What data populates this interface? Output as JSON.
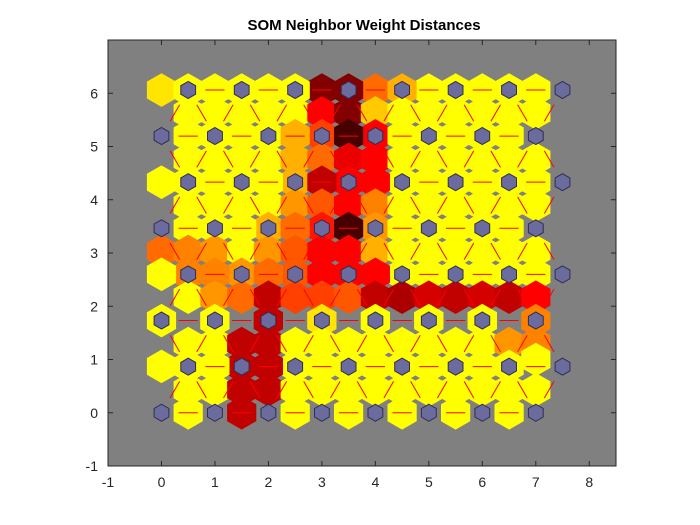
{
  "chart_data": {
    "type": "heatmap",
    "title": "SOM Neighbor Weight Distances",
    "xlabel": "",
    "ylabel": "",
    "xlim": [
      -1,
      8.5
    ],
    "ylim": [
      -1,
      7
    ],
    "x_ticks": [
      -1,
      0,
      1,
      2,
      3,
      4,
      5,
      6,
      7,
      8
    ],
    "y_ticks": [
      -1,
      0,
      1,
      2,
      3,
      4,
      5,
      6
    ],
    "grid": false,
    "colormap": "hot",
    "colors": {
      "background": "#808080",
      "neuron_fill": "#6b6b9e",
      "neuron_edge": "#2d2d55",
      "neighbor_line": "#ff0000"
    },
    "grid_size": {
      "cols": 8,
      "rows": 8
    },
    "neuron_spacing": {
      "dx": 1,
      "dy": 0.866,
      "odd_row_offset": 0.5
    },
    "neighbor_distances": {
      "description_levels": "0 = darkest (largest distance), 1 = brightest (smallest distance)",
      "horizontal": [
        {
          "row": 0,
          "values": [
            1.0,
            0.25,
            0.45,
            1.0,
            1.0,
            1.0,
            1.0
          ]
        },
        {
          "row": 1,
          "values": [
            1.0,
            1.0,
            0.9,
            0.3,
            1.0,
            1.0,
            1.0
          ]
        },
        {
          "row": 2,
          "values": [
            1.0,
            1.0,
            0.75,
            1.0,
            1.0,
            1.0,
            1.0
          ]
        },
        {
          "row": 3,
          "values": [
            1.0,
            0.7,
            0.5,
            0.6,
            1.0,
            1.0,
            1.0
          ]
        },
        {
          "row": 4,
          "values": [
            0.7,
            0.8,
            0.65,
            0.45,
            0.3,
            0.25,
            0.35
          ]
        },
        {
          "row": 5,
          "values": [
            0.75,
            0.95,
            0.65,
            0.55,
            0.65,
            0.95,
            1.0
          ]
        },
        {
          "row": 6,
          "values": [
            1.0,
            1.0,
            1.0,
            0.55,
            0.85,
            1.0,
            1.0
          ]
        },
        {
          "row": 7,
          "values": [
            1.0,
            1.0,
            1.0,
            0.55,
            0.85,
            1.0,
            1.0
          ]
        }
      ]
    },
    "cells": [
      {
        "x": 0.0,
        "y": 6.06,
        "v": 0.95
      },
      {
        "x": 1.0,
        "y": 6.06,
        "v": 1.0
      },
      {
        "x": 2.0,
        "y": 6.06,
        "v": 1.0
      },
      {
        "x": 3.0,
        "y": 6.06,
        "v": 0.15
      },
      {
        "x": 4.0,
        "y": 6.06,
        "v": 0.7
      },
      {
        "x": 5.0,
        "y": 6.06,
        "v": 1.0
      },
      {
        "x": 6.0,
        "y": 6.06,
        "v": 1.0
      },
      {
        "x": 7.0,
        "y": 6.06,
        "v": 1.0
      },
      {
        "x": 0.5,
        "y": 6.06,
        "v": 1.0
      },
      {
        "x": 1.5,
        "y": 6.06,
        "v": 1.0
      },
      {
        "x": 2.5,
        "y": 6.06,
        "v": 1.0
      },
      {
        "x": 3.5,
        "y": 6.06,
        "v": 0.15
      },
      {
        "x": 4.5,
        "y": 6.06,
        "v": 0.85
      },
      {
        "x": 5.5,
        "y": 6.06,
        "v": 1.0
      },
      {
        "x": 6.5,
        "y": 6.06,
        "v": 1.0
      },
      {
        "x": 0.5,
        "y": 5.63,
        "v": 1.0
      },
      {
        "x": 1.0,
        "y": 5.63,
        "v": 1.0
      },
      {
        "x": 1.5,
        "y": 5.63,
        "v": 1.0
      },
      {
        "x": 2.0,
        "y": 5.63,
        "v": 1.0
      },
      {
        "x": 2.5,
        "y": 5.63,
        "v": 1.0
      },
      {
        "x": 3.0,
        "y": 5.63,
        "v": 0.45
      },
      {
        "x": 3.5,
        "y": 5.63,
        "v": 0.15
      },
      {
        "x": 4.0,
        "y": 5.63,
        "v": 0.9
      },
      {
        "x": 4.5,
        "y": 5.63,
        "v": 1.0
      },
      {
        "x": 5.0,
        "y": 5.63,
        "v": 1.0
      },
      {
        "x": 5.5,
        "y": 5.63,
        "v": 1.0
      },
      {
        "x": 6.0,
        "y": 5.63,
        "v": 1.0
      },
      {
        "x": 6.5,
        "y": 5.63,
        "v": 1.0
      },
      {
        "x": 7.0,
        "y": 5.63,
        "v": 1.0
      },
      {
        "x": 1.0,
        "y": 5.2,
        "v": 1.0
      },
      {
        "x": 2.0,
        "y": 5.2,
        "v": 1.0
      },
      {
        "x": 3.0,
        "y": 5.2,
        "v": 0.6
      },
      {
        "x": 4.0,
        "y": 5.2,
        "v": 0.45
      },
      {
        "x": 5.0,
        "y": 5.2,
        "v": 1.0
      },
      {
        "x": 6.0,
        "y": 5.2,
        "v": 1.0
      },
      {
        "x": 0.5,
        "y": 5.2,
        "v": 1.0
      },
      {
        "x": 1.5,
        "y": 5.2,
        "v": 1.0
      },
      {
        "x": 2.5,
        "y": 5.2,
        "v": 0.85
      },
      {
        "x": 3.5,
        "y": 5.2,
        "v": 0.05
      },
      {
        "x": 4.5,
        "y": 5.2,
        "v": 1.0
      },
      {
        "x": 5.5,
        "y": 5.2,
        "v": 1.0
      },
      {
        "x": 6.5,
        "y": 5.2,
        "v": 1.0
      },
      {
        "x": 0.5,
        "y": 4.76,
        "v": 1.0
      },
      {
        "x": 1.0,
        "y": 4.76,
        "v": 1.0
      },
      {
        "x": 1.5,
        "y": 4.76,
        "v": 1.0
      },
      {
        "x": 2.0,
        "y": 4.76,
        "v": 1.0
      },
      {
        "x": 2.5,
        "y": 4.76,
        "v": 0.85
      },
      {
        "x": 3.0,
        "y": 4.76,
        "v": 0.7
      },
      {
        "x": 3.5,
        "y": 4.76,
        "v": 0.4
      },
      {
        "x": 4.0,
        "y": 4.76,
        "v": 0.45
      },
      {
        "x": 4.5,
        "y": 4.76,
        "v": 1.0
      },
      {
        "x": 5.0,
        "y": 4.76,
        "v": 1.0
      },
      {
        "x": 5.5,
        "y": 4.76,
        "v": 1.0
      },
      {
        "x": 6.0,
        "y": 4.76,
        "v": 1.0
      },
      {
        "x": 6.5,
        "y": 4.76,
        "v": 1.0
      },
      {
        "x": 7.0,
        "y": 4.76,
        "v": 1.0
      },
      {
        "x": 0.5,
        "y": 4.33,
        "v": 1.0
      },
      {
        "x": 1.5,
        "y": 4.33,
        "v": 1.0
      },
      {
        "x": 2.5,
        "y": 4.33,
        "v": 0.85
      },
      {
        "x": 3.5,
        "y": 4.33,
        "v": 0.45
      },
      {
        "x": 4.5,
        "y": 4.33,
        "v": 1.0
      },
      {
        "x": 5.5,
        "y": 4.33,
        "v": 1.0
      },
      {
        "x": 6.5,
        "y": 4.33,
        "v": 1.0
      },
      {
        "x": 0.0,
        "y": 4.33,
        "v": 1.0
      },
      {
        "x": 1.0,
        "y": 4.33,
        "v": 1.0
      },
      {
        "x": 2.0,
        "y": 4.33,
        "v": 1.0
      },
      {
        "x": 3.0,
        "y": 4.33,
        "v": 0.3
      },
      {
        "x": 4.0,
        "y": 4.33,
        "v": 0.45
      },
      {
        "x": 5.0,
        "y": 4.33,
        "v": 1.0
      },
      {
        "x": 6.0,
        "y": 4.33,
        "v": 1.0
      },
      {
        "x": 7.0,
        "y": 4.33,
        "v": 1.0
      },
      {
        "x": 0.5,
        "y": 3.9,
        "v": 1.0
      },
      {
        "x": 1.0,
        "y": 3.9,
        "v": 1.0
      },
      {
        "x": 1.5,
        "y": 3.9,
        "v": 1.0
      },
      {
        "x": 2.0,
        "y": 3.9,
        "v": 1.0
      },
      {
        "x": 2.5,
        "y": 3.9,
        "v": 0.8
      },
      {
        "x": 3.0,
        "y": 3.9,
        "v": 0.65
      },
      {
        "x": 3.5,
        "y": 3.9,
        "v": 0.45
      },
      {
        "x": 4.0,
        "y": 3.9,
        "v": 0.75
      },
      {
        "x": 4.5,
        "y": 3.9,
        "v": 1.0
      },
      {
        "x": 5.0,
        "y": 3.9,
        "v": 1.0
      },
      {
        "x": 5.5,
        "y": 3.9,
        "v": 1.0
      },
      {
        "x": 6.0,
        "y": 3.9,
        "v": 1.0
      },
      {
        "x": 6.5,
        "y": 3.9,
        "v": 1.0
      },
      {
        "x": 7.0,
        "y": 3.9,
        "v": 1.0
      },
      {
        "x": 1.0,
        "y": 3.46,
        "v": 1.0
      },
      {
        "x": 2.0,
        "y": 3.46,
        "v": 0.85
      },
      {
        "x": 3.0,
        "y": 3.46,
        "v": 0.5
      },
      {
        "x": 4.0,
        "y": 3.46,
        "v": 0.8
      },
      {
        "x": 5.0,
        "y": 3.46,
        "v": 1.0
      },
      {
        "x": 6.0,
        "y": 3.46,
        "v": 1.0
      },
      {
        "x": 0.5,
        "y": 3.46,
        "v": 1.0
      },
      {
        "x": 1.5,
        "y": 3.46,
        "v": 1.0
      },
      {
        "x": 2.5,
        "y": 3.46,
        "v": 0.7
      },
      {
        "x": 3.5,
        "y": 3.46,
        "v": 0.05
      },
      {
        "x": 4.5,
        "y": 3.46,
        "v": 1.0
      },
      {
        "x": 5.5,
        "y": 3.46,
        "v": 1.0
      },
      {
        "x": 6.5,
        "y": 3.46,
        "v": 1.0
      },
      {
        "x": 0.0,
        "y": 3.03,
        "v": 0.7
      },
      {
        "x": 0.5,
        "y": 3.03,
        "v": 0.75
      },
      {
        "x": 1.0,
        "y": 3.03,
        "v": 0.8
      },
      {
        "x": 1.5,
        "y": 3.03,
        "v": 1.0
      },
      {
        "x": 2.0,
        "y": 3.03,
        "v": 0.8
      },
      {
        "x": 2.5,
        "y": 3.03,
        "v": 0.65
      },
      {
        "x": 3.0,
        "y": 3.03,
        "v": 0.45
      },
      {
        "x": 3.5,
        "y": 3.03,
        "v": 0.45
      },
      {
        "x": 4.0,
        "y": 3.03,
        "v": 0.85
      },
      {
        "x": 4.5,
        "y": 3.03,
        "v": 1.0
      },
      {
        "x": 5.0,
        "y": 3.03,
        "v": 1.0
      },
      {
        "x": 5.5,
        "y": 3.03,
        "v": 1.0
      },
      {
        "x": 6.0,
        "y": 3.03,
        "v": 1.0
      },
      {
        "x": 6.5,
        "y": 3.03,
        "v": 1.0
      },
      {
        "x": 7.0,
        "y": 3.03,
        "v": 1.0
      },
      {
        "x": 0.5,
        "y": 2.6,
        "v": 0.75
      },
      {
        "x": 1.5,
        "y": 2.6,
        "v": 0.8
      },
      {
        "x": 2.5,
        "y": 2.6,
        "v": 0.65
      },
      {
        "x": 3.5,
        "y": 2.6,
        "v": 0.45
      },
      {
        "x": 4.5,
        "y": 2.6,
        "v": 1.0
      },
      {
        "x": 5.5,
        "y": 2.6,
        "v": 1.0
      },
      {
        "x": 6.5,
        "y": 2.6,
        "v": 1.0
      },
      {
        "x": 0.0,
        "y": 2.6,
        "v": 1.0
      },
      {
        "x": 1.0,
        "y": 2.6,
        "v": 0.75
      },
      {
        "x": 2.0,
        "y": 2.6,
        "v": 0.7
      },
      {
        "x": 3.0,
        "y": 2.6,
        "v": 0.45
      },
      {
        "x": 4.0,
        "y": 2.6,
        "v": 0.45
      },
      {
        "x": 5.0,
        "y": 2.6,
        "v": 1.0
      },
      {
        "x": 6.0,
        "y": 2.6,
        "v": 1.0
      },
      {
        "x": 7.0,
        "y": 2.6,
        "v": 1.0
      },
      {
        "x": 0.5,
        "y": 2.17,
        "v": 1.0
      },
      {
        "x": 1.0,
        "y": 2.17,
        "v": 0.8
      },
      {
        "x": 1.5,
        "y": 2.17,
        "v": 0.7
      },
      {
        "x": 2.0,
        "y": 2.17,
        "v": 0.3
      },
      {
        "x": 2.5,
        "y": 2.17,
        "v": 0.6
      },
      {
        "x": 3.0,
        "y": 2.17,
        "v": 0.6
      },
      {
        "x": 3.5,
        "y": 2.17,
        "v": 0.65
      },
      {
        "x": 4.0,
        "y": 2.17,
        "v": 0.3
      },
      {
        "x": 4.5,
        "y": 2.17,
        "v": 0.25
      },
      {
        "x": 5.0,
        "y": 2.17,
        "v": 0.35
      },
      {
        "x": 5.5,
        "y": 2.17,
        "v": 0.3
      },
      {
        "x": 6.0,
        "y": 2.17,
        "v": 0.35
      },
      {
        "x": 6.5,
        "y": 2.17,
        "v": 0.3
      },
      {
        "x": 7.0,
        "y": 2.17,
        "v": 0.45
      },
      {
        "x": 1.0,
        "y": 1.73,
        "v": 1.0
      },
      {
        "x": 2.0,
        "y": 1.73,
        "v": 0.3
      },
      {
        "x": 3.0,
        "y": 1.73,
        "v": 0.95
      },
      {
        "x": 4.0,
        "y": 1.73,
        "v": 1.0
      },
      {
        "x": 5.0,
        "y": 1.73,
        "v": 1.0
      },
      {
        "x": 6.0,
        "y": 1.73,
        "v": 1.0
      },
      {
        "x": 0.0,
        "y": 1.73,
        "v": 1.0
      },
      {
        "x": 1.0,
        "y": 1.73,
        "v": 1.0
      },
      {
        "x": 2.0,
        "y": 1.73,
        "v": 0.3
      },
      {
        "x": 3.0,
        "y": 1.73,
        "v": 0.95
      },
      {
        "x": 4.0,
        "y": 1.73,
        "v": 1.0
      },
      {
        "x": 5.0,
        "y": 1.73,
        "v": 1.0
      },
      {
        "x": 6.0,
        "y": 1.73,
        "v": 1.0
      },
      {
        "x": 7.0,
        "y": 1.73,
        "v": 0.75
      },
      {
        "x": 0.5,
        "y": 1.3,
        "v": 1.0
      },
      {
        "x": 1.0,
        "y": 1.3,
        "v": 1.0
      },
      {
        "x": 1.5,
        "y": 1.3,
        "v": 0.3
      },
      {
        "x": 2.0,
        "y": 1.3,
        "v": 0.3
      },
      {
        "x": 2.5,
        "y": 1.3,
        "v": 1.0
      },
      {
        "x": 3.0,
        "y": 1.3,
        "v": 1.0
      },
      {
        "x": 3.5,
        "y": 1.3,
        "v": 1.0
      },
      {
        "x": 4.0,
        "y": 1.3,
        "v": 1.0
      },
      {
        "x": 4.5,
        "y": 1.3,
        "v": 1.0
      },
      {
        "x": 5.0,
        "y": 1.3,
        "v": 1.0
      },
      {
        "x": 5.5,
        "y": 1.3,
        "v": 1.0
      },
      {
        "x": 6.0,
        "y": 1.3,
        "v": 1.0
      },
      {
        "x": 6.5,
        "y": 1.3,
        "v": 0.8
      },
      {
        "x": 7.0,
        "y": 1.3,
        "v": 0.75
      },
      {
        "x": 0.5,
        "y": 0.87,
        "v": 1.0
      },
      {
        "x": 1.5,
        "y": 0.87,
        "v": 0.3
      },
      {
        "x": 2.5,
        "y": 0.87,
        "v": 1.0
      },
      {
        "x": 3.5,
        "y": 0.87,
        "v": 1.0
      },
      {
        "x": 4.5,
        "y": 0.87,
        "v": 1.0
      },
      {
        "x": 5.5,
        "y": 0.87,
        "v": 1.0
      },
      {
        "x": 6.5,
        "y": 0.87,
        "v": 1.0
      },
      {
        "x": 0.0,
        "y": 0.87,
        "v": 1.0
      },
      {
        "x": 1.0,
        "y": 0.87,
        "v": 1.0
      },
      {
        "x": 2.0,
        "y": 0.87,
        "v": 0.3
      },
      {
        "x": 3.0,
        "y": 0.87,
        "v": 1.0
      },
      {
        "x": 4.0,
        "y": 0.87,
        "v": 1.0
      },
      {
        "x": 5.0,
        "y": 0.87,
        "v": 1.0
      },
      {
        "x": 6.0,
        "y": 0.87,
        "v": 1.0
      },
      {
        "x": 7.0,
        "y": 1.0,
        "v": 1.0
      },
      {
        "x": 0.5,
        "y": 0.43,
        "v": 1.0
      },
      {
        "x": 1.0,
        "y": 0.43,
        "v": 1.0
      },
      {
        "x": 1.5,
        "y": 0.43,
        "v": 0.3
      },
      {
        "x": 2.0,
        "y": 0.43,
        "v": 0.3
      },
      {
        "x": 2.5,
        "y": 0.43,
        "v": 1.0
      },
      {
        "x": 3.0,
        "y": 0.43,
        "v": 1.0
      },
      {
        "x": 3.5,
        "y": 0.43,
        "v": 1.0
      },
      {
        "x": 4.0,
        "y": 0.43,
        "v": 1.0
      },
      {
        "x": 4.5,
        "y": 0.43,
        "v": 1.0
      },
      {
        "x": 5.0,
        "y": 0.43,
        "v": 1.0
      },
      {
        "x": 5.5,
        "y": 0.43,
        "v": 1.0
      },
      {
        "x": 6.0,
        "y": 0.43,
        "v": 1.0
      },
      {
        "x": 6.5,
        "y": 0.43,
        "v": 1.0
      },
      {
        "x": 7.0,
        "y": 0.43,
        "v": 1.0
      },
      {
        "x": 0.5,
        "y": 0.0,
        "v": 1.0
      },
      {
        "x": 1.5,
        "y": 0.0,
        "v": 0.3
      },
      {
        "x": 2.5,
        "y": 0.0,
        "v": 1.0
      },
      {
        "x": 3.5,
        "y": 0.0,
        "v": 1.0
      },
      {
        "x": 4.5,
        "y": 0.0,
        "v": 1.0
      },
      {
        "x": 5.5,
        "y": 0.0,
        "v": 1.0
      },
      {
        "x": 6.5,
        "y": 0.0,
        "v": 1.0
      }
    ]
  }
}
